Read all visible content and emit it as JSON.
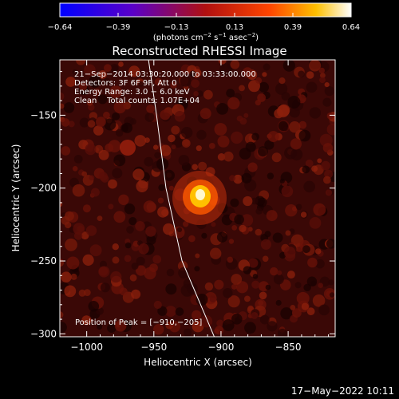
{
  "chart_data": {
    "type": "heatmap",
    "title": "Reconstructed RHESSI Image",
    "xlabel": "Heliocentric X (arcsec)",
    "ylabel": "Heliocentric Y (arcsec)",
    "xlim": [
      -1020,
      -815
    ],
    "ylim": [
      -302,
      -112
    ],
    "x_ticks": [
      -1000,
      -950,
      -900,
      -850
    ],
    "x_tick_labels": [
      "−1000",
      "−950",
      "−900",
      "−850"
    ],
    "y_ticks": [
      -150,
      -200,
      -250,
      -300
    ],
    "y_tick_labels": [
      "−150",
      "−200",
      "−250",
      "−300"
    ],
    "colorbar": {
      "range": [
        -0.64,
        0.64
      ],
      "tick_labels": [
        "−0.64",
        "−0.39",
        "−0.13",
        "0.13",
        "0.39",
        "0.64"
      ],
      "unit_main": "(photons cm",
      "unit_exp1": "−2",
      "unit_mid1": " s",
      "unit_exp2": "−1",
      "unit_mid2": " asec",
      "unit_exp3": "−2",
      "unit_close": ")"
    },
    "annotations": [
      "21−Sep−2014 03:30:20.000 to 03:33:00.000",
      "Detectors: 3F 6F 9F, Att 0",
      "Energy Range: 3.0 − 6.0 keV",
      "Clean    Total counts: 1.07E+04"
    ],
    "peak_label": "Position of Peak = [−910,−205]",
    "peak": {
      "x": -910,
      "y": -205,
      "value": 0.64
    },
    "limb_line": [
      [
        -954,
        -112
      ],
      [
        -948,
        -150
      ],
      [
        -941,
        -200
      ],
      [
        -929,
        -250
      ],
      [
        -905,
        -302
      ]
    ]
  },
  "footer": {
    "date": "17−May−2022 10:11"
  }
}
